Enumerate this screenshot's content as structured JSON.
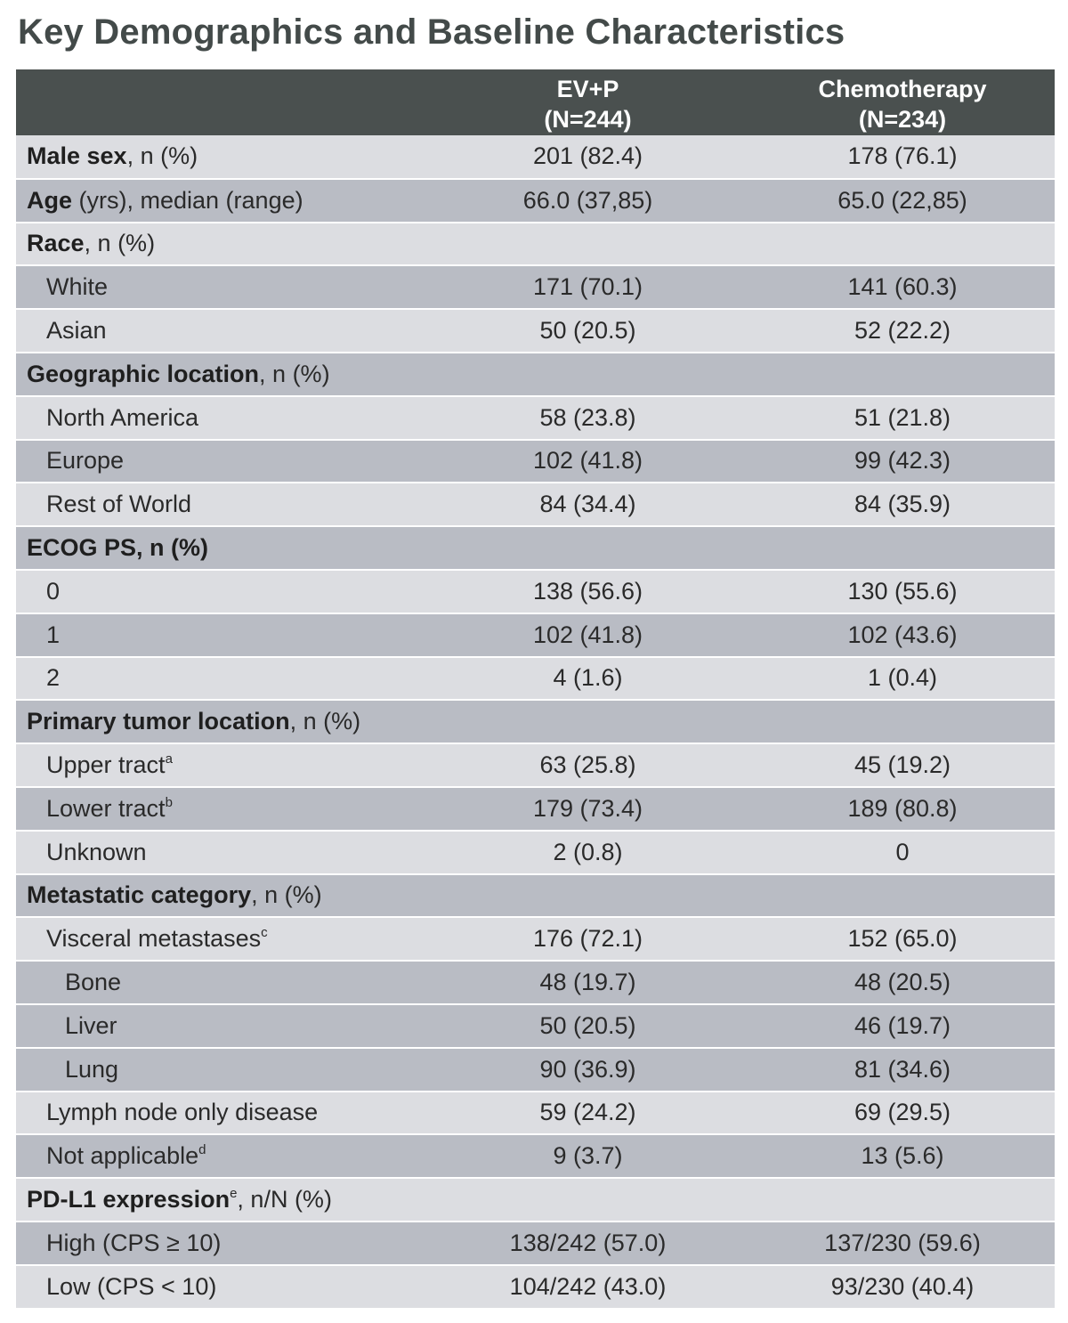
{
  "title": "Key Demographics and Baseline Characteristics",
  "header": {
    "col1_l1": "EV+P",
    "col1_l2": "(N=244)",
    "col2_l1": "Chemotherapy",
    "col2_l2": "(N=234)"
  },
  "rows": [
    {
      "bold": "Male sex",
      "rest": ", n (%)",
      "ev": "201 (82.4)",
      "chemo": "178 (76.1)"
    },
    {
      "bold": "Age",
      "rest": " (yrs), median (range)",
      "ev": "66.0 (37,85)",
      "chemo": "65.0 (22,85)"
    },
    {
      "bold": "Race",
      "rest": ", n (%)",
      "ev": "",
      "chemo": ""
    },
    {
      "text": "White",
      "ev": "171 (70.1)",
      "chemo": "141 (60.3)"
    },
    {
      "text": "Asian",
      "ev": "50 (20.5)",
      "chemo": "52 (22.2)"
    },
    {
      "bold": "Geographic location",
      "rest": ", n (%)",
      "ev": "",
      "chemo": ""
    },
    {
      "text": "North America",
      "ev": "58 (23.8)",
      "chemo": "51 (21.8)"
    },
    {
      "text": "Europe",
      "ev": "102 (41.8)",
      "chemo": "99 (42.3)"
    },
    {
      "text": "Rest of World",
      "ev": "84 (34.4)",
      "chemo": "84 (35.9)"
    },
    {
      "bold": "ECOG PS, n (%)",
      "rest": "",
      "ev": "",
      "chemo": ""
    },
    {
      "text": "0",
      "ev": "138 (56.6)",
      "chemo": "130 (55.6)"
    },
    {
      "text": "1",
      "ev": "102 (41.8)",
      "chemo": "102 (43.6)"
    },
    {
      "text": "2",
      "ev": "4 (1.6)",
      "chemo": "1 (0.4)"
    },
    {
      "bold": "Primary tumor location",
      "rest": ", n (%)",
      "ev": "",
      "chemo": ""
    },
    {
      "text": "Upper tract",
      "sup": "a",
      "ev": "63 (25.8)",
      "chemo": "45 (19.2)"
    },
    {
      "text": "Lower tract",
      "sup": "b",
      "ev": "179 (73.4)",
      "chemo": "189 (80.8)"
    },
    {
      "text": "Unknown",
      "ev": "2 (0.8)",
      "chemo": "0"
    },
    {
      "bold": "Metastatic category",
      "rest": ", n (%)",
      "ev": "",
      "chemo": ""
    },
    {
      "text": "Visceral metastases",
      "sup": "c",
      "ev": "176 (72.1)",
      "chemo": "152 (65.0)"
    },
    {
      "text": "Bone",
      "ev": "48 (19.7)",
      "chemo": "48 (20.5)"
    },
    {
      "text": "Liver",
      "ev": "50 (20.5)",
      "chemo": "46 (19.7)"
    },
    {
      "text": "Lung",
      "ev": "90 (36.9)",
      "chemo": "81 (34.6)"
    },
    {
      "text": "Lymph node only disease",
      "ev": "59 (24.2)",
      "chemo": "69 (29.5)"
    },
    {
      "text": "Not applicable",
      "sup": "d",
      "ev": "9 (3.7)",
      "chemo": "13 (5.6)"
    },
    {
      "bold": "PD-L1 expression",
      "bold_sup": "e",
      "rest": ", n/N (%)",
      "ev": "",
      "chemo": ""
    },
    {
      "text": "High (CPS ≥ 10)",
      "ev": "138/242 (57.0)",
      "chemo": "137/230 (59.6)"
    },
    {
      "text": "Low (CPS < 10)",
      "ev": "104/242 (43.0)",
      "chemo": "93/230 (40.4)"
    }
  ]
}
